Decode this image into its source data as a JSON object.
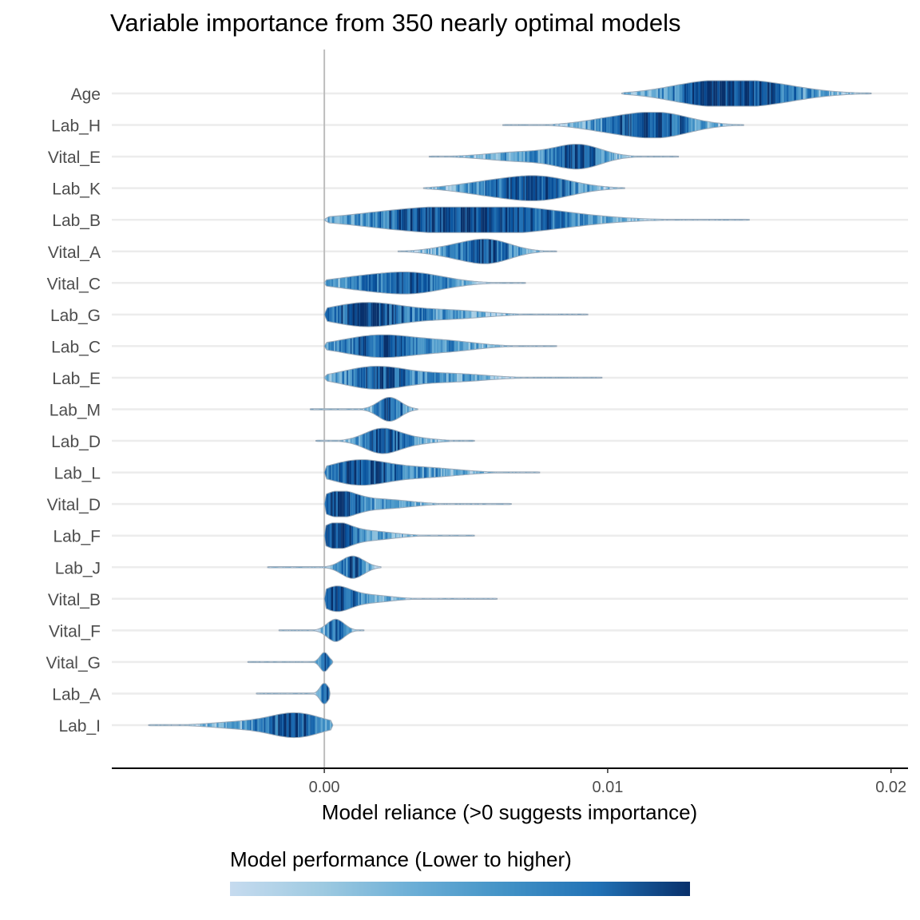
{
  "chart_data": {
    "type": "violin",
    "title": "Variable importance from 350 nearly optimal models",
    "xlabel": "Model reliance (>0 suggests importance)",
    "ylabel": "",
    "xlim": [
      -0.0075,
      0.0206
    ],
    "x_ticks": [
      {
        "value": 0.0,
        "label": "0.00"
      },
      {
        "value": 0.01,
        "label": "0.01"
      },
      {
        "value": 0.02,
        "label": "0.02"
      }
    ],
    "reference_line": 0.0,
    "grid": "horizontal",
    "legend": {
      "title": "Model performance (Lower to higher)",
      "placement": "bottom",
      "gradient_colors": [
        "#c6dbef",
        "#9ecae1",
        "#6baed6",
        "#4292c6",
        "#2171b5",
        "#08306b"
      ]
    },
    "series": [
      {
        "name": "Age",
        "min": 0.0105,
        "max": 0.0193,
        "modes": [
          [
            0.015,
            15,
            0.0016
          ],
          [
            0.013,
            7,
            0.0012
          ]
        ]
      },
      {
        "name": "Lab_H",
        "min": 0.0063,
        "max": 0.0148,
        "modes": [
          [
            0.0118,
            15,
            0.0011
          ],
          [
            0.01,
            6,
            0.001
          ]
        ]
      },
      {
        "name": "Vital_E",
        "min": 0.0037,
        "max": 0.0125,
        "modes": [
          [
            0.009,
            14,
            0.0008
          ],
          [
            0.007,
            6,
            0.0012
          ]
        ]
      },
      {
        "name": "Lab_K",
        "min": 0.0035,
        "max": 0.0106,
        "modes": [
          [
            0.0075,
            15,
            0.0012
          ],
          [
            0.0055,
            5,
            0.001
          ]
        ]
      },
      {
        "name": "Lab_B",
        "min": 0.0,
        "max": 0.015,
        "modes": [
          [
            0.0065,
            15,
            0.0022
          ],
          [
            0.003,
            10,
            0.002
          ]
        ]
      },
      {
        "name": "Vital_A",
        "min": 0.0026,
        "max": 0.0082,
        "modes": [
          [
            0.0058,
            14,
            0.0008
          ],
          [
            0.0045,
            5,
            0.0008
          ]
        ]
      },
      {
        "name": "Vital_C",
        "min": 0.0,
        "max": 0.0071,
        "modes": [
          [
            0.003,
            13,
            0.0012
          ],
          [
            0.001,
            5,
            0.001
          ]
        ]
      },
      {
        "name": "Lab_G",
        "min": 0.0,
        "max": 0.0093,
        "modes": [
          [
            0.0015,
            15,
            0.0013
          ],
          [
            0.0045,
            5,
            0.0012
          ]
        ]
      },
      {
        "name": "Lab_C",
        "min": 0.0,
        "max": 0.0082,
        "modes": [
          [
            0.002,
            14,
            0.0013
          ],
          [
            0.0045,
            5,
            0.001
          ]
        ]
      },
      {
        "name": "Lab_E",
        "min": 0.0,
        "max": 0.0098,
        "modes": [
          [
            0.0018,
            14,
            0.0011
          ],
          [
            0.0045,
            5,
            0.0012
          ]
        ]
      },
      {
        "name": "Lab_M",
        "min": -0.0005,
        "max": 0.0033,
        "modes": [
          [
            0.0023,
            15,
            0.0004
          ]
        ]
      },
      {
        "name": "Lab_D",
        "min": -0.0003,
        "max": 0.0053,
        "modes": [
          [
            0.002,
            14,
            0.0006
          ],
          [
            0.003,
            4,
            0.0008
          ]
        ]
      },
      {
        "name": "Lab_L",
        "min": 0.0,
        "max": 0.0076,
        "modes": [
          [
            0.0012,
            15,
            0.001
          ],
          [
            0.0035,
            6,
            0.0012
          ]
        ]
      },
      {
        "name": "Vital_D",
        "min": 0.0,
        "max": 0.0066,
        "modes": [
          [
            0.0005,
            15,
            0.0006
          ],
          [
            0.002,
            6,
            0.001
          ]
        ]
      },
      {
        "name": "Lab_F",
        "min": 0.0,
        "max": 0.0053,
        "modes": [
          [
            0.0004,
            14,
            0.0005
          ],
          [
            0.0015,
            6,
            0.0009
          ]
        ]
      },
      {
        "name": "Lab_J",
        "min": -0.002,
        "max": 0.002,
        "modes": [
          [
            0.001,
            14,
            0.0004
          ]
        ]
      },
      {
        "name": "Vital_B",
        "min": 0.0,
        "max": 0.0061,
        "modes": [
          [
            0.0004,
            14,
            0.0005
          ],
          [
            0.0015,
            5,
            0.0008
          ]
        ]
      },
      {
        "name": "Vital_F",
        "min": -0.0016,
        "max": 0.0014,
        "modes": [
          [
            0.0004,
            14,
            0.0003
          ]
        ]
      },
      {
        "name": "Vital_G",
        "min": -0.0027,
        "max": 0.0003,
        "modes": [
          [
            0.0,
            12,
            0.00015
          ]
        ]
      },
      {
        "name": "Lab_A",
        "min": -0.0024,
        "max": 0.0002,
        "modes": [
          [
            0.0,
            13,
            0.00015
          ]
        ]
      },
      {
        "name": "Lab_I",
        "min": -0.0062,
        "max": 0.0003,
        "modes": [
          [
            -0.001,
            15,
            0.0009
          ],
          [
            -0.003,
            4,
            0.001
          ]
        ]
      }
    ]
  }
}
